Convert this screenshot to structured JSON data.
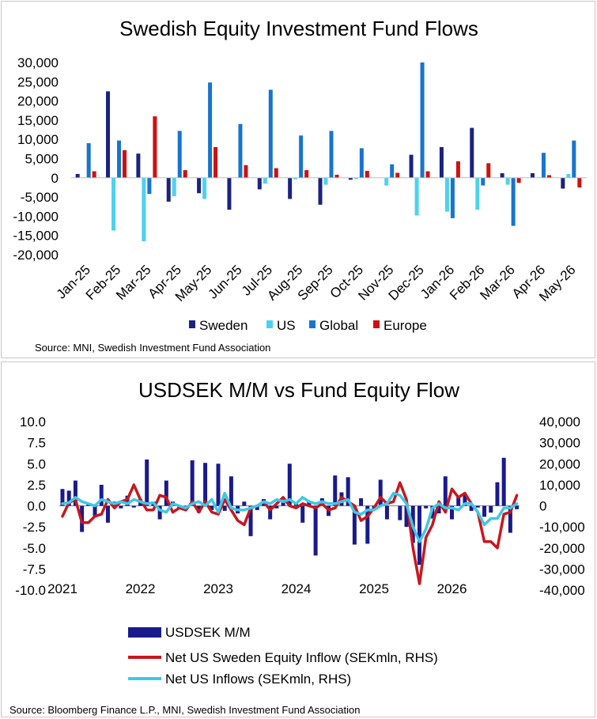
{
  "chart_data": [
    {
      "type": "bar",
      "title": "Swedish Equity Investment Fund Flows",
      "source": "Source: MNI, Swedish Investment Fund Association",
      "categories": [
        "Jan-25",
        "Feb-25",
        "Mar-25",
        "Apr-25",
        "May-25",
        "Jun-25",
        "Jul-25",
        "Aug-25",
        "Sep-25",
        "Oct-25",
        "Nov-25",
        "Dec-25",
        "Jan-26",
        "Feb-26",
        "Mar-26",
        "Apr-26",
        "May-26"
      ],
      "ylim": [
        -20000,
        30000
      ],
      "yticks": [
        "30,000",
        "25,000",
        "20,000",
        "15,000",
        "10,000",
        "5,000",
        "0",
        "-5,000",
        "-10,000",
        "-15,000",
        "-20,000"
      ],
      "legend_position": "bottom",
      "series": [
        {
          "name": "Sweden",
          "color": "#1a237e",
          "values": [
            1000,
            22500,
            6300,
            -6200,
            -4000,
            -8300,
            -3000,
            -5500,
            -7000,
            -500,
            0,
            6000,
            8000,
            13000,
            1200,
            1200,
            -2800
          ]
        },
        {
          "name": "US",
          "color": "#4dd2ee",
          "values": [
            0,
            -13700,
            -16500,
            -4800,
            -5500,
            0,
            -1500,
            -400,
            -1800,
            -300,
            -2000,
            -9800,
            -8800,
            -8300,
            -1800,
            0,
            1000
          ]
        },
        {
          "name": "Global",
          "color": "#1874cd",
          "values": [
            9000,
            9700,
            -4200,
            12200,
            24800,
            14000,
            22900,
            11000,
            12200,
            7700,
            3500,
            30000,
            -10500,
            -2000,
            -12500,
            6500,
            9700
          ]
        },
        {
          "name": "Europe",
          "color": "#d01010",
          "values": [
            1700,
            7200,
            16000,
            2000,
            8000,
            3300,
            2500,
            2000,
            800,
            1800,
            1300,
            1700,
            4300,
            3800,
            -1300,
            700,
            -2500
          ]
        }
      ]
    },
    {
      "type": "bar+line",
      "title": "USDSEK M/M vs Fund Equity Flow",
      "source": "Source: Bloomberg Finance L.P., MNI, Swedish Investment Fund Association",
      "x_labels": [
        "2021",
        "2022",
        "2023",
        "2024",
        "2025",
        "2026"
      ],
      "ylim_left": [
        -10,
        10
      ],
      "yticks_left": [
        "10.0",
        "7.5",
        "5.0",
        "2.5",
        "0.0",
        "-2.5",
        "-5.0",
        "-7.5",
        "-10.0"
      ],
      "ylim_right": [
        -40000,
        40000
      ],
      "yticks_right": [
        "40,000",
        "30,000",
        "20,000",
        "10,000",
        "0",
        "-10,000",
        "-20,000",
        "-30,000",
        "-40,000"
      ],
      "legend_position": "bottom",
      "series": [
        {
          "name": "USDSEK M/M",
          "axis": "left",
          "kind": "bar",
          "color": "#1a1a8c",
          "values": [
            2,
            1.8,
            3,
            -3.1,
            0.2,
            -1.3,
            2.5,
            -2,
            0.5,
            -0.3,
            1.2,
            -0.2,
            0.8,
            5.5,
            0.5,
            -1.6,
            3,
            0.5,
            -0.4,
            -0.5,
            5.4,
            -0.8,
            5.1,
            -0.5,
            5,
            -0.6,
            3.5,
            -0.9,
            0.5,
            -3.6,
            -0.5,
            0.8,
            -1.6,
            -0.3,
            0.4,
            5,
            0.3,
            -2,
            0.5,
            -5.9,
            0.9,
            -1.2,
            3.6,
            1.6,
            3.4,
            -4.6,
            0.9,
            -4.5,
            -0.5,
            3.1,
            -1.6,
            0,
            -1.7,
            -2.5,
            -4.4,
            -7,
            -0.3,
            -1.5,
            -0.9,
            3.5,
            -1.6,
            1,
            1.4,
            -0.6,
            -0.2,
            -1.3,
            -0.8,
            2.8,
            5.7,
            -3.2,
            -0.4
          ]
        },
        {
          "name": "Net US Sweden Equity Inflow (SEKmln, RHS)",
          "axis": "right",
          "kind": "line",
          "color": "#c8171e",
          "values": [
            -5000,
            1500,
            3000,
            -8000,
            -8000,
            -5000,
            -4000,
            3000,
            -1000,
            2000,
            3000,
            10000,
            3000,
            -2000,
            -2000,
            5000,
            4000,
            -3000,
            -1000,
            -2000,
            2000,
            -3000,
            2000,
            -3000,
            -4000,
            3000,
            -2000,
            -7000,
            -9000,
            -1000,
            0,
            2000,
            -2000,
            1000,
            4000,
            0,
            -1000,
            1000,
            0,
            -1000,
            1000,
            -2000,
            -1000,
            4000,
            2000,
            0,
            -7000,
            -5000,
            -1000,
            4000,
            1000,
            2000,
            11000,
            3000,
            -20000,
            -37000,
            -15000,
            -9000,
            2000,
            -3000,
            8000,
            4000,
            6000,
            1000,
            -3000,
            -17000,
            -17000,
            -20000,
            -4000,
            -3000,
            5000
          ]
        },
        {
          "name": "Net US Inflows (SEKmln, RHS)",
          "axis": "right",
          "kind": "line",
          "color": "#3ec8e6",
          "values": [
            1000,
            1500,
            4000,
            2000,
            1000,
            0,
            3000,
            2000,
            1000,
            2000,
            1000,
            3000,
            2000,
            1000,
            1500,
            -2000,
            -3000,
            1000,
            0,
            -1000,
            1000,
            2000,
            0,
            3000,
            -3000,
            6000,
            -1000,
            -2000,
            -2000,
            -1000,
            0,
            2000,
            1000,
            3000,
            2000,
            3000,
            1000,
            4000,
            2000,
            1000,
            2000,
            1000,
            1000,
            2000,
            3000,
            -3000,
            -4000,
            -2000,
            -2000,
            0,
            1000,
            6000,
            5000,
            1000,
            -10000,
            -17000,
            -11000,
            -1000,
            1000,
            -1000,
            -1000,
            -2000,
            1000,
            1000,
            -3000,
            -9000,
            -6000,
            -6000,
            -1000,
            -1000,
            1000
          ]
        }
      ]
    }
  ]
}
